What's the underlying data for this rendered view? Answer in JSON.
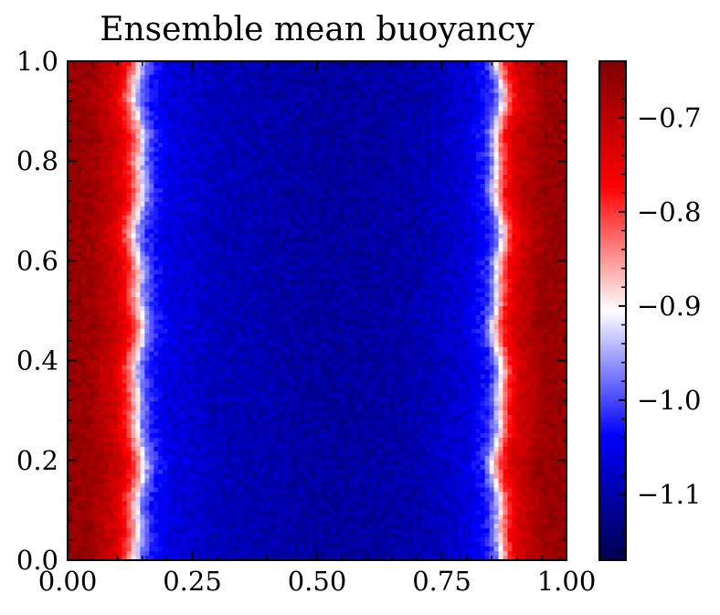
{
  "chart_data": {
    "type": "heatmap",
    "title": "Ensemble mean buoyancy",
    "xlabel": "",
    "ylabel": "",
    "xlim": [
      0.0,
      1.0
    ],
    "ylim": [
      0.0,
      1.0
    ],
    "x_ticks": [
      {
        "value": 0.0,
        "label": "0.00"
      },
      {
        "value": 0.25,
        "label": "0.25"
      },
      {
        "value": 0.5,
        "label": "0.50"
      },
      {
        "value": 0.75,
        "label": "0.75"
      },
      {
        "value": 1.0,
        "label": "1.00"
      }
    ],
    "y_ticks": [
      {
        "value": 0.0,
        "label": "0.0"
      },
      {
        "value": 0.2,
        "label": "0.2"
      },
      {
        "value": 0.4,
        "label": "0.4"
      },
      {
        "value": 0.6,
        "label": "0.6"
      },
      {
        "value": 0.8,
        "label": "0.8"
      },
      {
        "value": 1.0,
        "label": "1.0"
      }
    ],
    "colorbar": {
      "cmap": "seismic",
      "range": [
        -1.17,
        -0.64
      ],
      "colors": [
        "#00004d",
        "#0000ff",
        "#ffffff",
        "#ff0000",
        "#800000"
      ],
      "ticks": [
        {
          "value": -0.7,
          "label": "−0.7"
        },
        {
          "value": -0.8,
          "label": "−0.8"
        },
        {
          "value": -0.9,
          "label": "−0.9"
        },
        {
          "value": -1.0,
          "label": "−1.0"
        },
        {
          "value": -1.1,
          "label": "−1.1"
        }
      ]
    },
    "x_profile": {
      "x": [
        0.0,
        0.05,
        0.1,
        0.12,
        0.14,
        0.15,
        0.17,
        0.2,
        0.3,
        0.4,
        0.5,
        0.6,
        0.7,
        0.8,
        0.84,
        0.855,
        0.865,
        0.88,
        0.9,
        0.95,
        1.0
      ],
      "values": [
        -0.66,
        -0.67,
        -0.73,
        -0.79,
        -0.88,
        -0.96,
        -1.02,
        -1.06,
        -1.09,
        -1.1,
        -1.11,
        -1.11,
        -1.1,
        -1.07,
        -1.02,
        -0.96,
        -0.88,
        -0.79,
        -0.73,
        -0.67,
        -0.66
      ]
    },
    "grid": false
  }
}
